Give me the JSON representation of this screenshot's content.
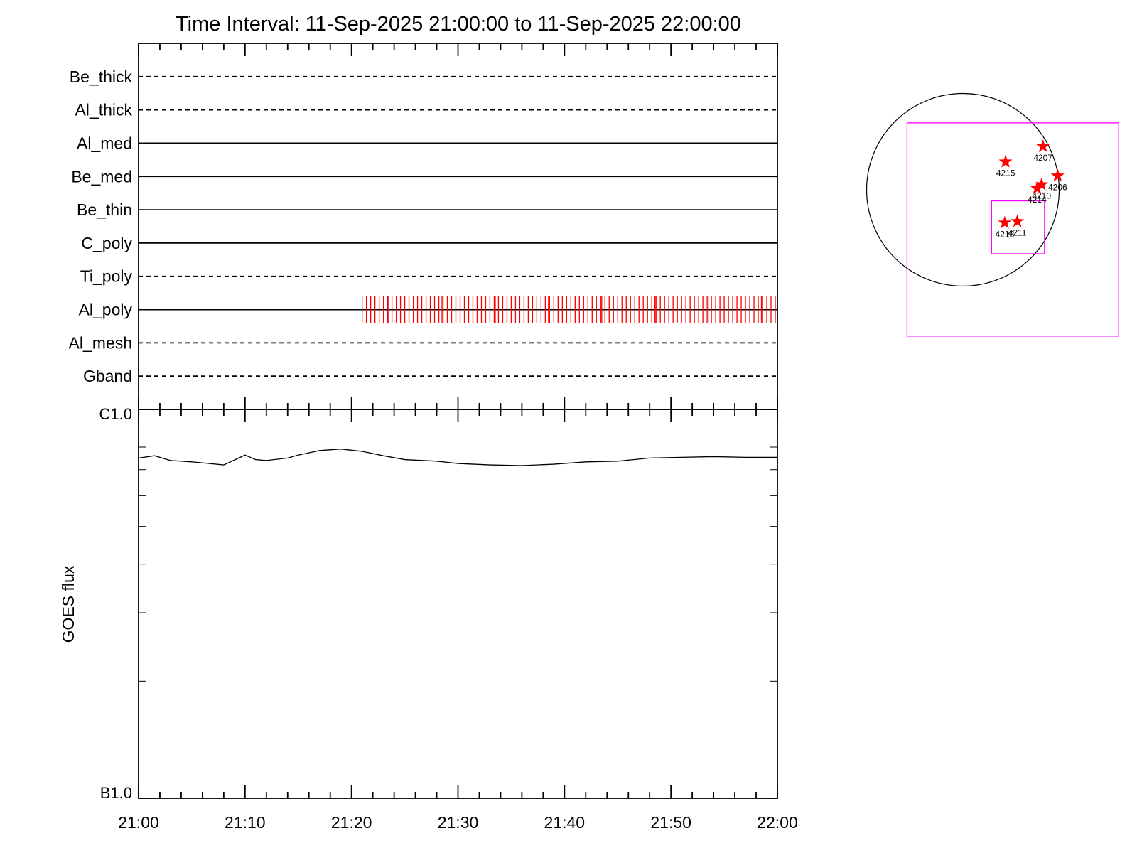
{
  "chart_data": [
    {
      "type": "timeline",
      "title": "Time Interval: 11-Sep-2025 21:00:00 to 11-Sep-2025 22:00:00",
      "xlim": [
        0,
        60
      ],
      "mark_color": "#ff0000",
      "filters": [
        {
          "name": "Be_thick",
          "style": "dashed"
        },
        {
          "name": "Al_thick",
          "style": "dashed"
        },
        {
          "name": "Al_med",
          "style": "solid"
        },
        {
          "name": "Be_med",
          "style": "solid"
        },
        {
          "name": "Be_thin",
          "style": "solid"
        },
        {
          "name": "C_poly",
          "style": "solid"
        },
        {
          "name": "Ti_poly",
          "style": "dashed"
        },
        {
          "name": "Al_poly",
          "style": "solid",
          "times": [
            21.0,
            21.4,
            21.8,
            22.2,
            22.6,
            23.0,
            23.4,
            23.8,
            24.2,
            24.6,
            25.0,
            25.4,
            25.8,
            26.2,
            26.6,
            27.0,
            27.4,
            27.8,
            28.2,
            28.6,
            29.0,
            29.4,
            29.8,
            30.2,
            30.6,
            31.0,
            31.4,
            31.8,
            32.2,
            32.6,
            33.0,
            33.4,
            33.8,
            34.2,
            34.6,
            35.0,
            35.4,
            35.8,
            36.2,
            36.6,
            37.0,
            37.4,
            37.8,
            38.2,
            38.6,
            39.0,
            39.4,
            39.8,
            40.2,
            40.6,
            41.0,
            41.4,
            41.8,
            42.2,
            42.6,
            43.0,
            43.4,
            43.8,
            44.2,
            44.6,
            45.0,
            45.4,
            45.8,
            46.2,
            46.6,
            47.0,
            47.4,
            47.8,
            48.2,
            48.6,
            49.0,
            49.4,
            49.8,
            50.2,
            50.6,
            51.0,
            51.4,
            51.8,
            52.2,
            52.6,
            53.0,
            53.4,
            53.8,
            54.2,
            54.6,
            55.0,
            55.4,
            55.8,
            56.2,
            56.6,
            57.0,
            57.4,
            57.8,
            58.2,
            58.6,
            59.0,
            59.4,
            59.8,
            23.5,
            28.5,
            33.5,
            38.5,
            43.5,
            48.5,
            53.5,
            58.5
          ]
        },
        {
          "name": "Al_mesh",
          "style": "dashed"
        },
        {
          "name": "Gband",
          "style": "dashed"
        }
      ]
    },
    {
      "type": "line",
      "ylabel": "GOES flux",
      "log_scale": true,
      "color": "#000000",
      "xlim": [
        0,
        60
      ],
      "xticks": [
        {
          "value": 0,
          "label": "21:00"
        },
        {
          "value": 10,
          "label": "21:10"
        },
        {
          "value": 20,
          "label": "21:20"
        },
        {
          "value": 30,
          "label": "21:30"
        },
        {
          "value": 40,
          "label": "21:40"
        },
        {
          "value": 50,
          "label": "21:50"
        },
        {
          "value": 60,
          "label": "22:00"
        }
      ],
      "xminorticks": [
        2,
        4,
        6,
        8,
        12,
        14,
        16,
        18,
        22,
        24,
        26,
        28,
        32,
        34,
        36,
        38,
        42,
        44,
        46,
        48,
        52,
        54,
        56,
        58
      ],
      "ylim": [
        1e-07,
        1e-06
      ],
      "yticks": [
        {
          "value": 1e-06,
          "label": "C1.0"
        },
        {
          "value": 1e-07,
          "label": "B1.0"
        }
      ],
      "yminorticks": [
        8e-07,
        7e-07,
        6e-07,
        5e-07,
        4e-07,
        3e-07,
        2e-07
      ],
      "x": [
        0,
        1.5,
        3,
        5,
        8,
        10,
        11,
        12,
        14,
        15,
        17,
        19,
        21,
        23,
        25,
        28,
        30,
        33,
        36,
        39,
        42,
        45,
        48,
        51,
        54,
        57,
        60
      ],
      "values": [
        7.5e-07,
        7.6e-07,
        7.39e-07,
        7.33e-07,
        7.2e-07,
        7.63e-07,
        7.43e-07,
        7.39e-07,
        7.5e-07,
        7.63e-07,
        7.84e-07,
        7.91e-07,
        7.8e-07,
        7.6e-07,
        7.43e-07,
        7.36e-07,
        7.26e-07,
        7.2e-07,
        7.17e-07,
        7.23e-07,
        7.33e-07,
        7.36e-07,
        7.5e-07,
        7.53e-07,
        7.56e-07,
        7.53e-07,
        7.53e-07
      ]
    },
    {
      "type": "map",
      "disk_radius": 950,
      "box_color": "#ff00ff",
      "star_color": "#ff0000",
      "boxes": [
        {
          "x": [
            -551,
            1537
          ],
          "y": [
            -1443,
            660
          ]
        },
        {
          "x": [
            283,
            805
          ],
          "y": [
            -631,
            -109
          ]
        }
      ],
      "regions": [
        {
          "label": "4207",
          "x": 790,
          "y": 428
        },
        {
          "label": "4215",
          "x": 421,
          "y": 276
        },
        {
          "label": "4206",
          "x": 935,
          "y": 138
        },
        {
          "label": "4210",
          "x": 776,
          "y": 51
        },
        {
          "label": "4214",
          "x": 732,
          "y": 14
        },
        {
          "label": "4218",
          "x": 413,
          "y": -326
        },
        {
          "label": "4211",
          "x": 537,
          "y": -312
        }
      ]
    }
  ]
}
